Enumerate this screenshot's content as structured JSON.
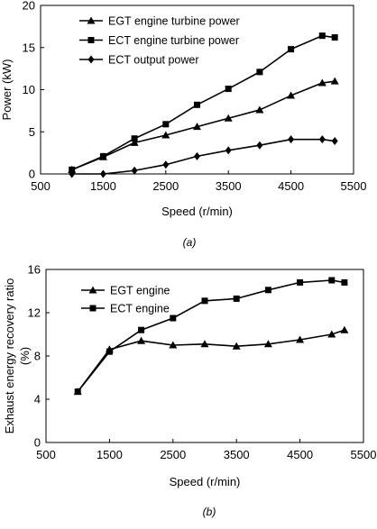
{
  "chart_data": [
    {
      "type": "line",
      "caption": "(a)",
      "xlabel": "Speed   (r/min)",
      "ylabel": "Power (kW)",
      "xlim": [
        500,
        5500
      ],
      "ylim": [
        0,
        20
      ],
      "xticks": [
        500,
        1500,
        2500,
        3500,
        4500,
        5500
      ],
      "yticks": [
        0,
        5,
        10,
        15,
        20
      ],
      "grid": false,
      "legend_position": "top-left",
      "x": [
        1000,
        1500,
        2000,
        2500,
        3000,
        3500,
        4000,
        4500,
        5000,
        5200
      ],
      "series": [
        {
          "name": "EGT engine turbine power",
          "marker": "triangle",
          "values": [
            0.5,
            2.0,
            3.7,
            4.6,
            5.6,
            6.6,
            7.6,
            9.3,
            10.8,
            11.0
          ]
        },
        {
          "name": "ECT engine turbine power",
          "marker": "square",
          "values": [
            0.5,
            2.1,
            4.2,
            5.9,
            8.2,
            10.1,
            12.1,
            14.8,
            16.4,
            16.2
          ]
        },
        {
          "name": "ECT output power",
          "marker": "diamond",
          "values": [
            0.0,
            0.0,
            0.4,
            1.1,
            2.1,
            2.8,
            3.4,
            4.1,
            4.1,
            3.9
          ]
        }
      ]
    },
    {
      "type": "line",
      "caption": "(b)",
      "xlabel": "Speed   (r/min)",
      "ylabel": "Exhaust energy recovery ratio",
      "ylabel_unit": "(%)",
      "xlim": [
        500,
        5500
      ],
      "ylim": [
        0,
        16
      ],
      "xticks": [
        500,
        1500,
        2500,
        3500,
        4500,
        5500
      ],
      "yticks": [
        0,
        4,
        8,
        12,
        16
      ],
      "grid": false,
      "legend_position": "top-left",
      "x": [
        1000,
        1500,
        2000,
        2500,
        3000,
        3500,
        4000,
        4500,
        5000,
        5200
      ],
      "series": [
        {
          "name": "EGT engine",
          "marker": "triangle",
          "values": [
            4.7,
            8.6,
            9.4,
            9.0,
            9.1,
            8.9,
            9.1,
            9.5,
            10.0,
            10.4
          ]
        },
        {
          "name": "ECT engine",
          "marker": "square",
          "values": [
            4.7,
            8.4,
            10.4,
            11.5,
            13.1,
            13.3,
            14.1,
            14.8,
            15.0,
            14.8
          ]
        }
      ]
    }
  ]
}
